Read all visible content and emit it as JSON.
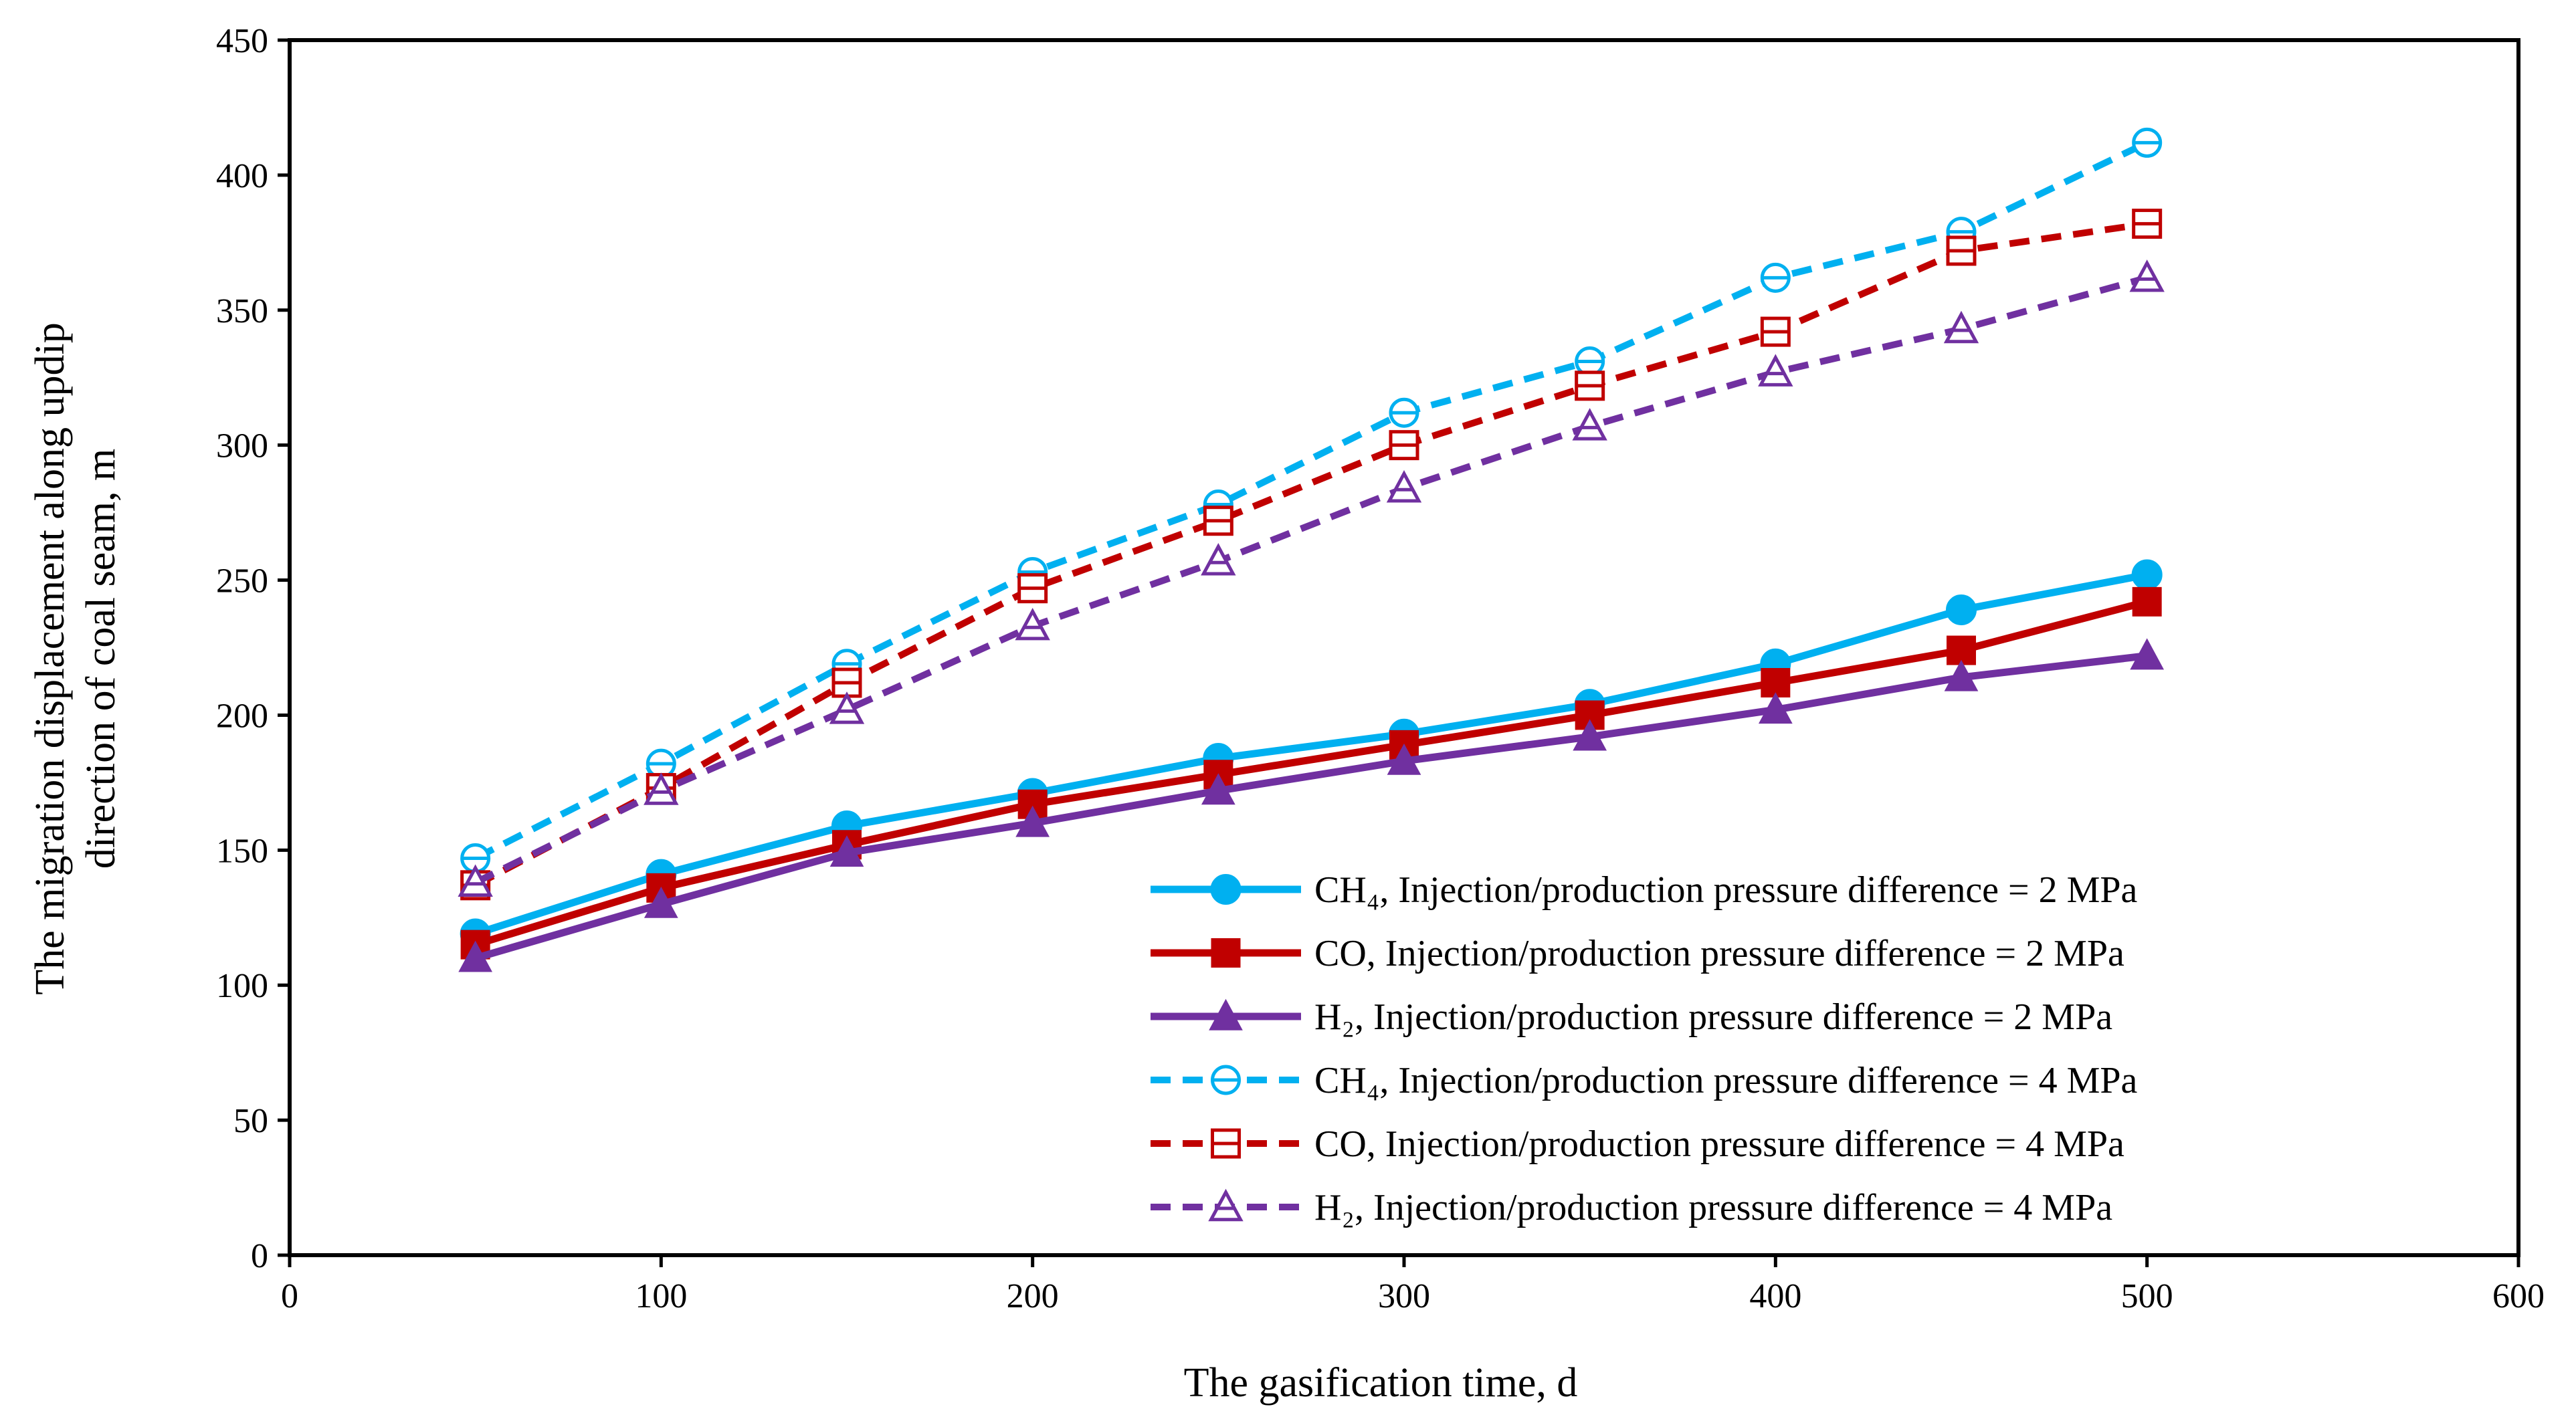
{
  "chart_data": {
    "type": "line",
    "title": "",
    "xlabel": "The gasification time, d",
    "ylabel_lines": [
      "The migration displacement along updip",
      "direction of coal seam, m"
    ],
    "xlim": [
      0,
      600
    ],
    "ylim": [
      0,
      450
    ],
    "xticks": [
      0,
      100,
      200,
      300,
      400,
      500,
      600
    ],
    "yticks": [
      0,
      50,
      100,
      150,
      200,
      250,
      300,
      350,
      400,
      450
    ],
    "x": [
      50,
      100,
      150,
      200,
      250,
      300,
      350,
      400,
      450,
      500
    ],
    "legend_position": "bottom-right",
    "series": [
      {
        "name": "CH₄, Injection/production pressure difference = 2 MPa",
        "color": "#00B0F0",
        "dash": "solid",
        "marker": "circle",
        "filled": true,
        "values": [
          119,
          141,
          159,
          171,
          184,
          193,
          204,
          219,
          239,
          252
        ]
      },
      {
        "name": "CO, Injection/production pressure difference = 2 MPa",
        "color": "#C00000",
        "dash": "solid",
        "marker": "square",
        "filled": true,
        "values": [
          115,
          136,
          152,
          167,
          178,
          189,
          200,
          212,
          224,
          242
        ]
      },
      {
        "name": "H₂, Injection/production pressure difference = 2 MPa",
        "color": "#7030A0",
        "dash": "solid",
        "marker": "triangle",
        "filled": true,
        "values": [
          110,
          130,
          149,
          160,
          172,
          183,
          192,
          202,
          214,
          222
        ]
      },
      {
        "name": "CH₄, Injection/production pressure difference = 4 MPa",
        "color": "#00B0F0",
        "dash": "dashed",
        "marker": "circle",
        "filled": false,
        "values": [
          147,
          182,
          219,
          253,
          278,
          312,
          331,
          362,
          379,
          412
        ]
      },
      {
        "name": "CO, Injection/production pressure difference = 4 MPa",
        "color": "#C00000",
        "dash": "dashed",
        "marker": "square",
        "filled": false,
        "values": [
          137,
          173,
          212,
          247,
          272,
          300,
          322,
          342,
          372,
          382
        ]
      },
      {
        "name": "H₂, Injection/production pressure difference = 4 MPa",
        "color": "#7030A0",
        "dash": "dashed",
        "marker": "triangle",
        "filled": false,
        "values": [
          138,
          172,
          202,
          233,
          257,
          284,
          307,
          327,
          343,
          362
        ]
      }
    ]
  }
}
